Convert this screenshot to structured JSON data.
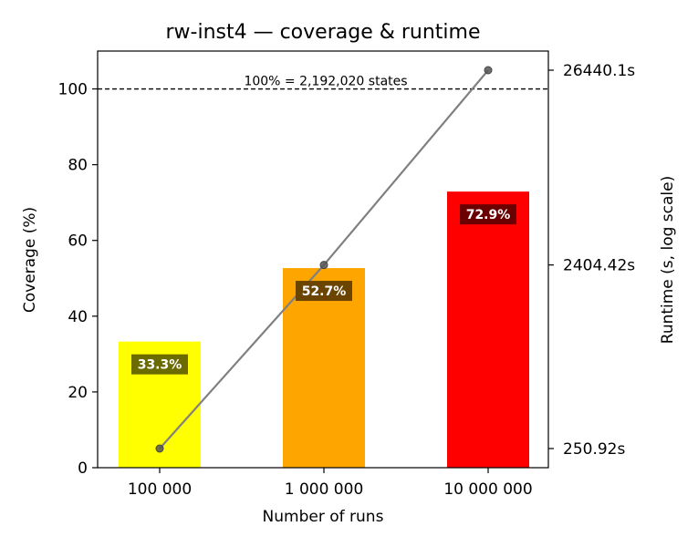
{
  "chart_data": {
    "type": "bar",
    "title": "rw-inst4 — coverage & runtime",
    "xlabel": "Number of runs",
    "ylabel": "Coverage (%)",
    "y2label": "Runtime (s, log scale)",
    "categories": [
      "100 000",
      "1 000 000",
      "10 000 000"
    ],
    "values": [
      33.3,
      52.7,
      72.9
    ],
    "value_labels": [
      "33.3%",
      "52.7%",
      "72.9%"
    ],
    "bar_colors": [
      "#ffff00",
      "#ffa500",
      "#ff0000"
    ],
    "label_box_colors": [
      "#6b6b00",
      "#6b4500",
      "#6b0000"
    ],
    "ylim": [
      0,
      110
    ],
    "yticks": [
      0,
      20,
      40,
      60,
      80,
      100
    ],
    "reference_line": {
      "value": 100,
      "label": "100% = 2,192,020 states"
    },
    "runtime_series": {
      "values": [
        250.92,
        2404.42,
        26440.1
      ],
      "tick_labels": [
        "250.92s",
        "2404.42s",
        "26440.1s"
      ],
      "scale": "log",
      "color": "#808080"
    },
    "grid": false
  }
}
